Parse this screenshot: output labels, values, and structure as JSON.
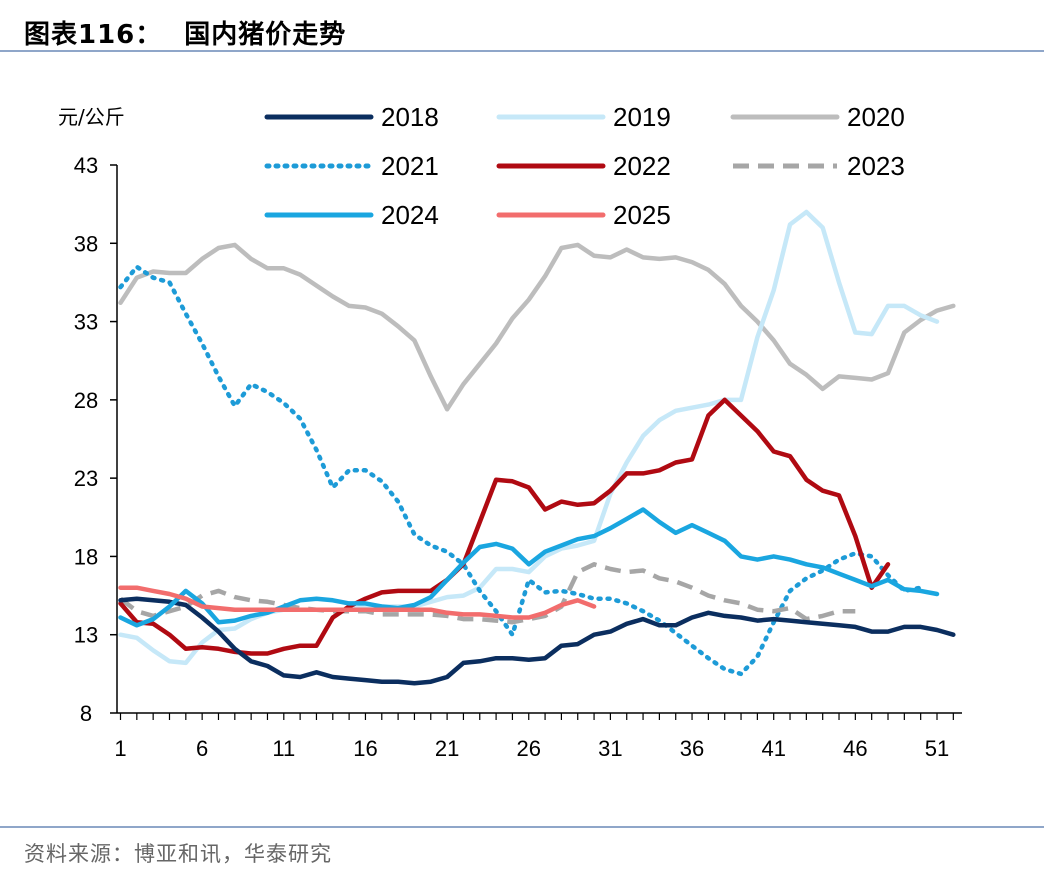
{
  "header": {
    "figure_label": "图表116：",
    "title": "国内猪价走势"
  },
  "source": "资料来源：博亚和讯，华泰研究",
  "chart_data": {
    "type": "line",
    "title": "国内猪价走势",
    "ylabel": "元/公斤",
    "xlabel": "",
    "xlim": [
      1,
      53
    ],
    "ylim": [
      8,
      43
    ],
    "x_ticks": [
      1,
      6,
      11,
      16,
      21,
      26,
      31,
      36,
      41,
      46,
      51
    ],
    "y_ticks": [
      8,
      13,
      18,
      23,
      28,
      33,
      38,
      43
    ],
    "legend_position": "top",
    "series": [
      {
        "name": "2018",
        "color": "#0b2e5f",
        "style": "solid",
        "values": [
          15.2,
          15.3,
          15.2,
          15.1,
          14.9,
          14.1,
          13.2,
          12.1,
          11.3,
          11.0,
          10.4,
          10.3,
          10.6,
          10.3,
          10.2,
          10.1,
          10.0,
          10.0,
          9.9,
          10.0,
          10.3,
          11.2,
          11.3,
          11.5,
          11.5,
          11.4,
          11.5,
          12.3,
          12.4,
          13.0,
          13.2,
          13.7,
          14.0,
          13.6,
          13.6,
          14.1,
          14.4,
          14.2,
          14.1,
          13.9,
          14.0,
          13.9,
          13.8,
          13.7,
          13.6,
          13.5,
          13.2,
          13.2,
          13.5,
          13.5,
          13.3,
          13.0
        ]
      },
      {
        "name": "2019",
        "color": "#c6e8f8",
        "style": "solid",
        "values": [
          13.0,
          12.8,
          12.0,
          11.3,
          11.2,
          12.5,
          13.3,
          13.4,
          14.0,
          14.4,
          14.6,
          14.6,
          14.6,
          14.6,
          14.6,
          14.8,
          14.8,
          14.8,
          14.8,
          15.1,
          15.4,
          15.5,
          16.0,
          17.2,
          17.2,
          17.0,
          18.0,
          18.5,
          18.7,
          19.0,
          22.0,
          24.0,
          25.7,
          26.7,
          27.3,
          27.5,
          27.7,
          28.0,
          28.0,
          32.0,
          35.0,
          39.2,
          40.0,
          39.0,
          35.5,
          32.3,
          32.2,
          34.0,
          34.0,
          33.4,
          33.0
        ]
      },
      {
        "name": "2020",
        "color": "#bdbdbd",
        "style": "solid",
        "values": [
          34.2,
          35.8,
          36.2,
          36.1,
          36.1,
          37.0,
          37.7,
          37.9,
          37.0,
          36.4,
          36.4,
          36.0,
          35.3,
          34.6,
          34.0,
          33.9,
          33.5,
          32.7,
          31.8,
          29.5,
          27.4,
          29.0,
          30.3,
          31.6,
          33.2,
          34.4,
          35.9,
          37.7,
          37.9,
          37.2,
          37.1,
          37.6,
          37.1,
          37.0,
          37.1,
          36.8,
          36.3,
          35.4,
          34.0,
          33.0,
          31.8,
          30.3,
          29.6,
          28.7,
          29.5,
          29.4,
          29.3,
          29.7,
          32.3,
          33.1,
          33.7,
          34.0
        ]
      },
      {
        "name": "2021",
        "color": "#1d9bd7",
        "style": "dotted",
        "values": [
          35.2,
          36.5,
          35.8,
          35.5,
          33.5,
          31.6,
          29.5,
          27.6,
          29.0,
          28.5,
          27.8,
          26.8,
          24.8,
          22.4,
          23.5,
          23.5,
          22.8,
          21.5,
          19.4,
          18.7,
          18.3,
          17.5,
          15.8,
          14.5,
          13.0,
          16.5,
          15.7,
          15.8,
          15.6,
          15.3,
          15.3,
          15.0,
          14.5,
          13.9,
          13.1,
          12.3,
          11.5,
          10.8,
          10.5,
          11.6,
          13.8,
          15.8,
          16.6,
          17.1,
          17.8,
          18.2,
          18.0,
          16.8,
          15.8,
          16.0
        ]
      },
      {
        "name": "2022",
        "color": "#b00a12",
        "style": "solid",
        "values": [
          15.0,
          13.8,
          13.7,
          13.0,
          12.1,
          12.2,
          12.1,
          11.9,
          11.8,
          11.8,
          12.1,
          12.3,
          12.3,
          14.1,
          14.8,
          15.3,
          15.7,
          15.8,
          15.8,
          15.8,
          16.5,
          17.5,
          20.2,
          22.9,
          22.8,
          22.4,
          21.0,
          21.5,
          21.3,
          21.4,
          22.2,
          23.3,
          23.3,
          23.5,
          24.0,
          24.2,
          27.0,
          28.0,
          27.0,
          26.0,
          24.7,
          24.4,
          22.9,
          22.2,
          21.9,
          19.3,
          16.0,
          17.5
        ]
      },
      {
        "name": "2023",
        "color": "#a6a6a6",
        "style": "dashed",
        "values": [
          15.3,
          14.5,
          14.2,
          14.5,
          14.8,
          15.5,
          15.8,
          15.4,
          15.2,
          15.1,
          14.9,
          14.7,
          14.6,
          14.5,
          14.5,
          14.5,
          14.3,
          14.3,
          14.3,
          14.3,
          14.2,
          14.0,
          14.0,
          13.9,
          13.8,
          14.0,
          14.2,
          14.8,
          17.0,
          17.5,
          17.2,
          17.0,
          17.1,
          16.6,
          16.4,
          16.0,
          15.5,
          15.2,
          15.0,
          14.6,
          14.5,
          14.7,
          14.0,
          14.2,
          14.5,
          14.5
        ]
      },
      {
        "name": "2024",
        "color": "#1aa6e0",
        "style": "solid",
        "values": [
          14.1,
          13.6,
          14.0,
          14.8,
          15.8,
          15.0,
          13.8,
          13.9,
          14.2,
          14.4,
          14.8,
          15.2,
          15.3,
          15.2,
          15.0,
          15.0,
          14.8,
          14.7,
          14.9,
          15.4,
          16.5,
          17.6,
          18.6,
          18.8,
          18.5,
          17.5,
          18.3,
          18.7,
          19.1,
          19.3,
          19.8,
          20.4,
          21.0,
          20.2,
          19.5,
          20.0,
          19.5,
          19.0,
          18.0,
          17.8,
          18.0,
          17.8,
          17.5,
          17.3,
          16.9,
          16.5,
          16.1,
          16.5,
          15.9,
          15.8,
          15.6
        ]
      },
      {
        "name": "2025",
        "color": "#f26d6d",
        "style": "solid",
        "values": [
          16.0,
          16.0,
          15.8,
          15.6,
          15.3,
          14.8,
          14.7,
          14.6,
          14.6,
          14.6,
          14.6,
          14.6,
          14.6,
          14.6,
          14.6,
          14.6,
          14.6,
          14.6,
          14.6,
          14.6,
          14.4,
          14.3,
          14.3,
          14.2,
          14.1,
          14.1,
          14.4,
          14.9,
          15.2,
          14.8
        ]
      }
    ]
  }
}
